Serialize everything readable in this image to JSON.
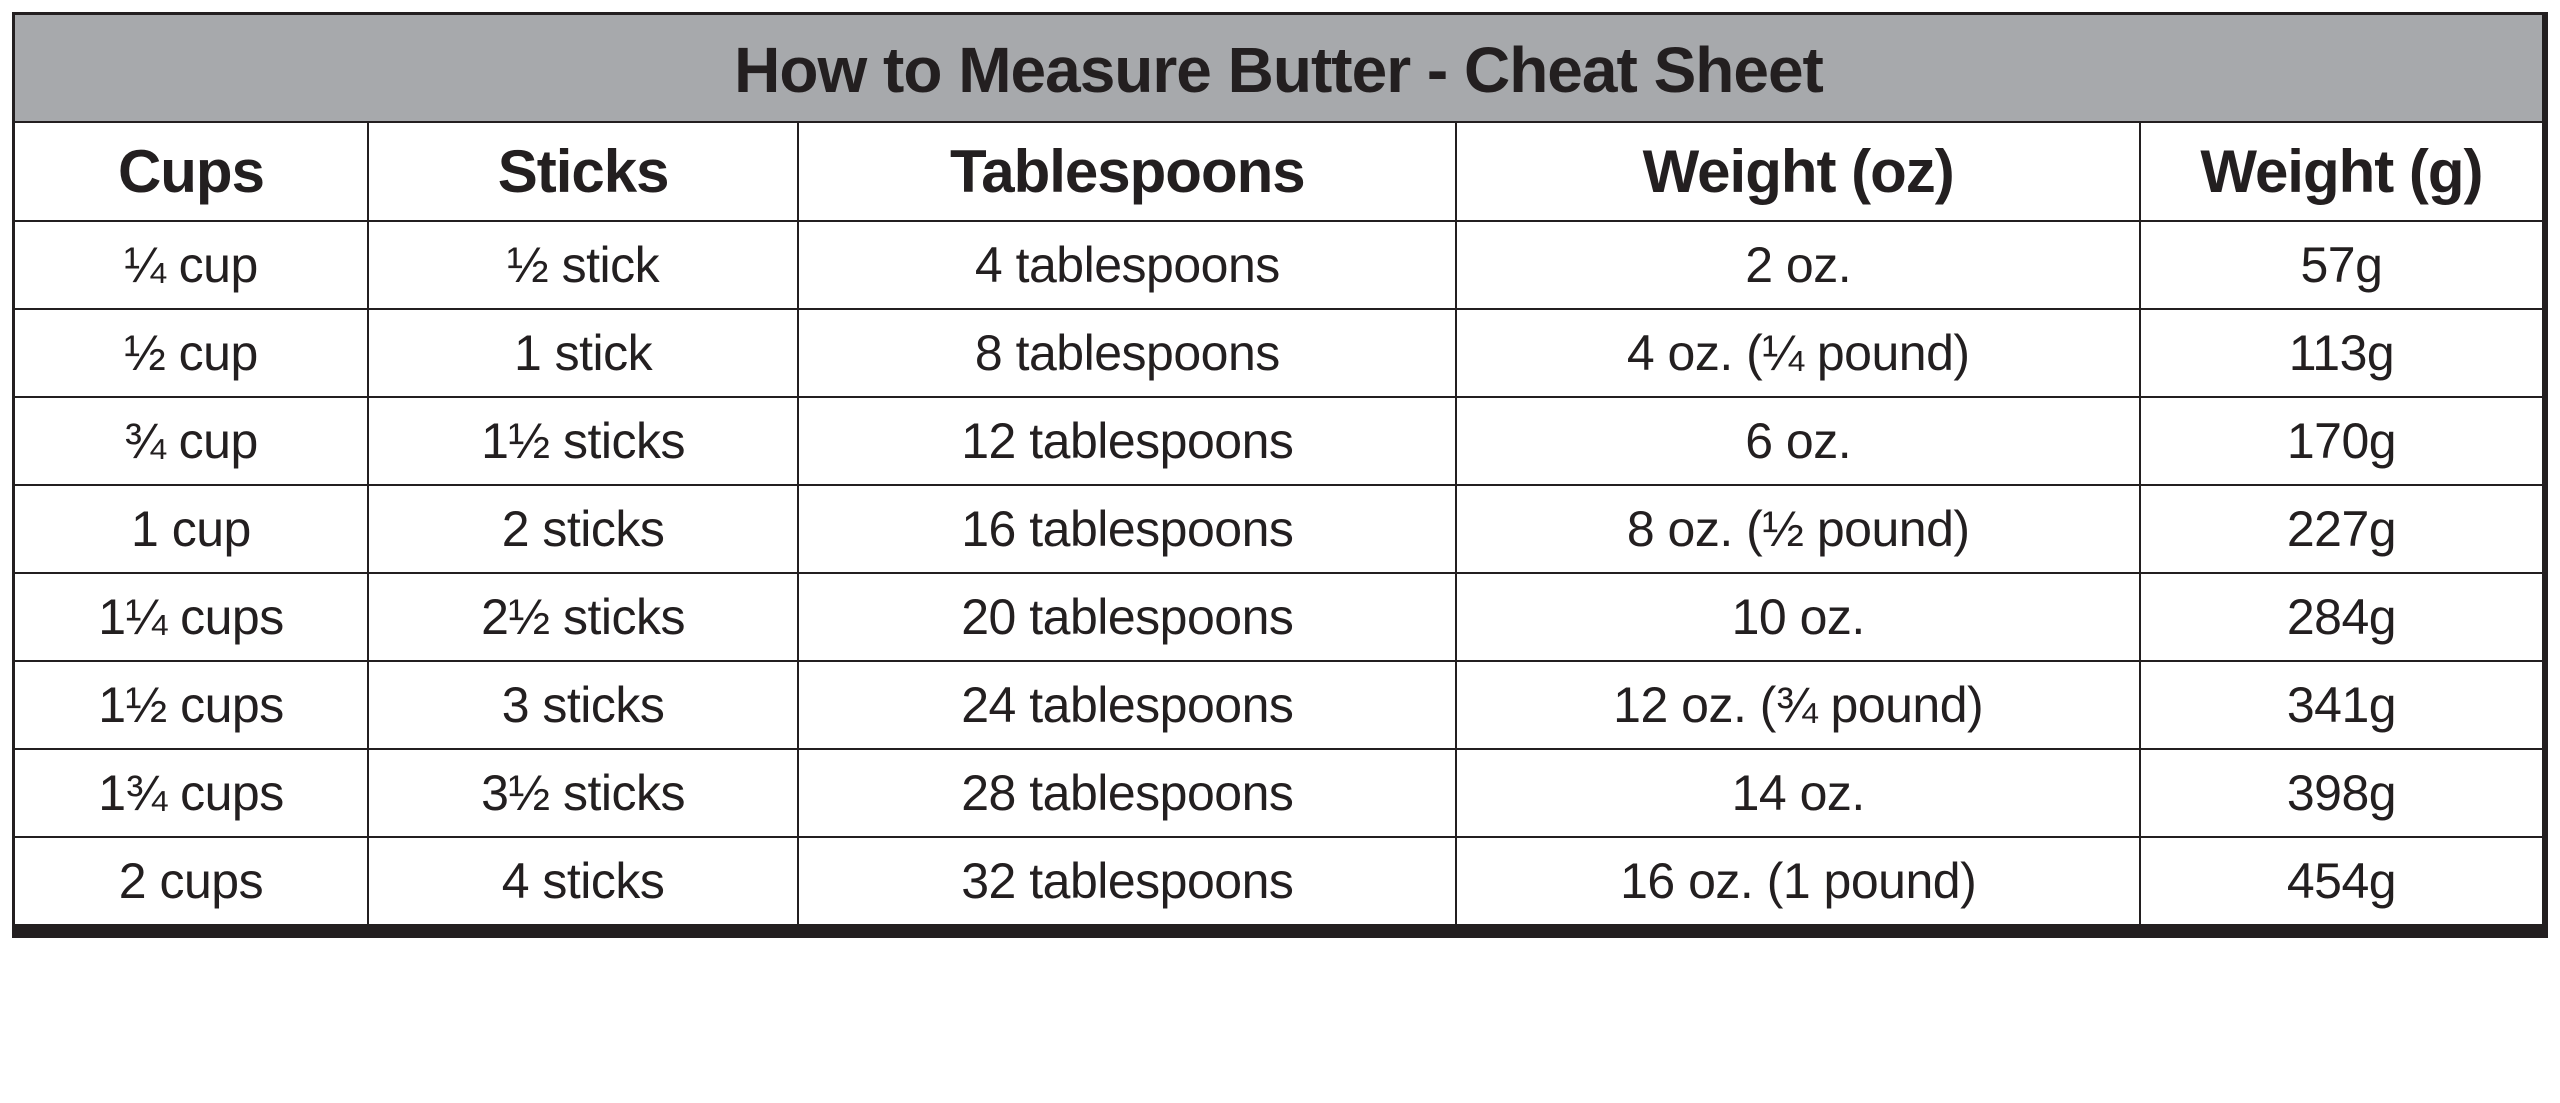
{
  "table": {
    "type": "table",
    "title": "How to Measure Butter - Cheat Sheet",
    "background_color": "#ffffff",
    "title_bg_color": "#a7a9ac",
    "border_color": "#231f20",
    "text_color": "#231f20",
    "title_fontsize": 64,
    "header_fontsize": 60,
    "cell_fontsize": 50,
    "font_family": "Helvetica",
    "column_widths_pct": [
      14,
      17,
      26,
      27,
      16
    ],
    "columns": [
      "Cups",
      "Sticks",
      "Tablespoons",
      "Weight (oz)",
      "Weight (g)"
    ],
    "rows": [
      [
        "¼ cup",
        "½ stick",
        "4 tablespoons",
        "2 oz.",
        "57g"
      ],
      [
        "½ cup",
        "1 stick",
        "8 tablespoons",
        "4 oz. (¼ pound)",
        "113g"
      ],
      [
        "¾ cup",
        "1½ sticks",
        "12 tablespoons",
        "6 oz.",
        "170g"
      ],
      [
        "1 cup",
        "2 sticks",
        "16 tablespoons",
        "8 oz. (½ pound)",
        "227g"
      ],
      [
        "1¼ cups",
        "2½ sticks",
        "20 tablespoons",
        "10 oz.",
        "284g"
      ],
      [
        "1½ cups",
        "3 sticks",
        "24 tablespoons",
        "12 oz. (¾ pound)",
        "341g"
      ],
      [
        "1¾ cups",
        "3½ sticks",
        "28 tablespoons",
        "14 oz.",
        "398g"
      ],
      [
        "2 cups",
        "4 sticks",
        "32 tablespoons",
        "16 oz. (1 pound)",
        "454g"
      ]
    ]
  }
}
